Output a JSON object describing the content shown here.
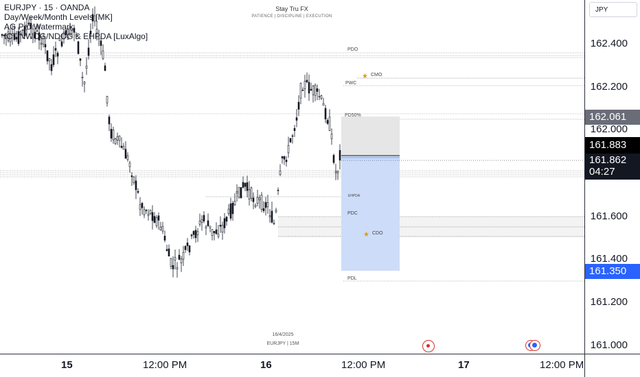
{
  "legend": {
    "symbol": "EURJPY · 15 · OANDA",
    "indicator_1": "Day/Week/Month Levels [MK]",
    "indicator_2": "AG Pro Watermark",
    "indicator_3": "ICT NWOG/NDOG & EHPDA [LuxAlgo]"
  },
  "watermark": {
    "title": "Stay Tru FX",
    "subtitle": "PATIENCE  |  DISCIPLINE  |  EXECUTION"
  },
  "bottom_watermark": {
    "date": "16/4/2025",
    "symbol_tf": "EURJPY | 15M"
  },
  "levels": {
    "pdo": "PDO",
    "cmo": "CMO",
    "pwc": "PWC",
    "pd50": "PD50%",
    "ehpda": "EHPDA",
    "pdc": "PDC",
    "cdo": "CDO",
    "pdl": "PDL"
  },
  "price_scale": {
    "currency": "JPY",
    "ticks": [
      "162.400",
      "162.200",
      "162.000",
      "161.600",
      "161.400",
      "161.200",
      "161.000"
    ],
    "tag_top": "162.061",
    "tag_last": "161.883",
    "tag_current": "161.862",
    "countdown": "04:27",
    "tag_blue": "161.350"
  },
  "time_scale": {
    "labels": [
      "15",
      "12:00 PM",
      "16",
      "12:00 PM",
      "17",
      "12:00 PM"
    ]
  },
  "colors": {
    "bull": "#131722",
    "bear": "#131722",
    "position_stop": "#e0e0e0",
    "position_target": "#cfdcf7",
    "tag_blue": "#2962ff",
    "tag_dark": "#131722",
    "tag_grey": "#6a6d78"
  }
}
